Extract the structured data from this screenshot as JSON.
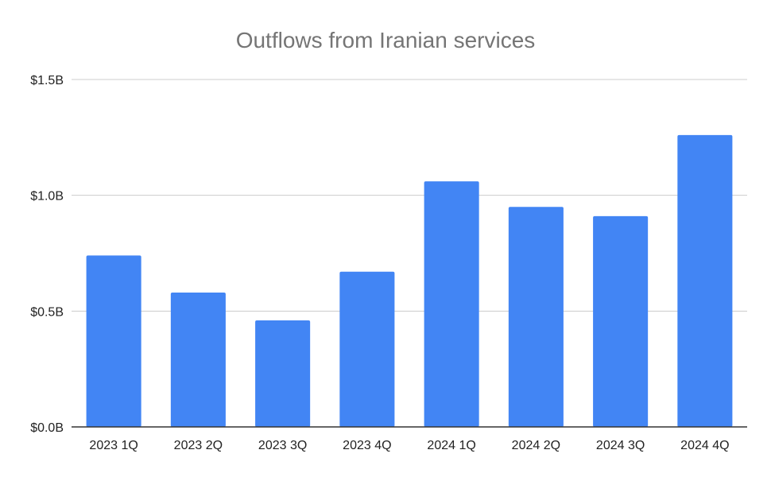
{
  "chart_data": {
    "type": "bar",
    "title": "Outflows from Iranian services",
    "xlabel": "",
    "ylabel": "",
    "categories": [
      "2023 1Q",
      "2023 2Q",
      "2023 3Q",
      "2023 4Q",
      "2024 1Q",
      "2024 2Q",
      "2024 3Q",
      "2024 4Q"
    ],
    "values": [
      0.74,
      0.58,
      0.46,
      0.67,
      1.06,
      0.95,
      0.91,
      1.26
    ],
    "unit": "billion USD",
    "ylim": [
      0,
      1.5
    ],
    "yticks": [
      0,
      0.5,
      1.0,
      1.5
    ],
    "ytick_labels": [
      "$0.0B",
      "$0.5B",
      "$1.0B",
      "$1.5B"
    ],
    "bar_color": "#4285f4",
    "grid": true,
    "legend": "none"
  }
}
